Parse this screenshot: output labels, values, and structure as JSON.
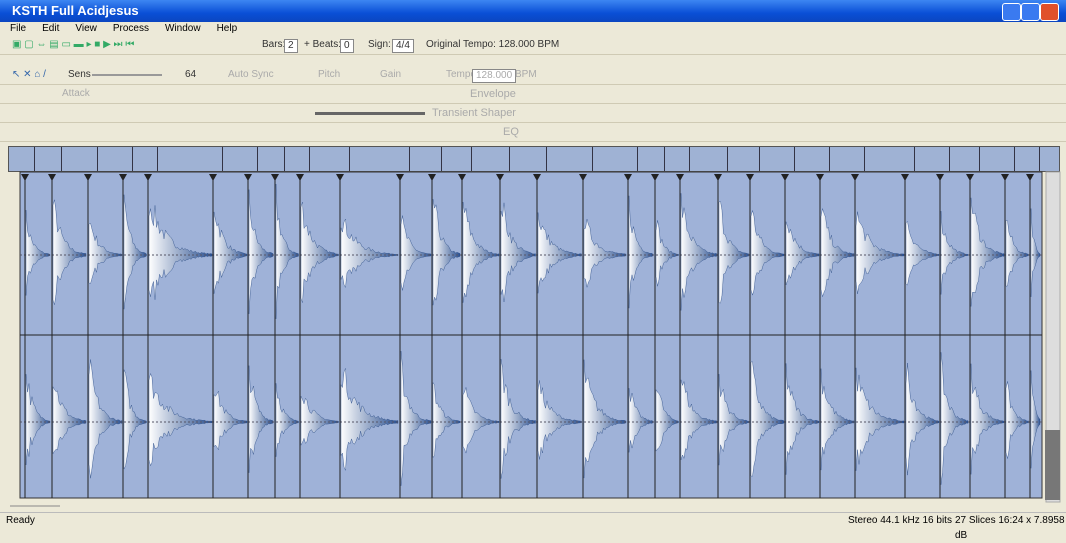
{
  "window": {
    "title": "KSTH Full Acidjesus"
  },
  "menu": [
    "File",
    "Edit",
    "View",
    "Process",
    "Window",
    "Help"
  ],
  "toolbar": {
    "bars_label": "Bars:",
    "bars": "2",
    "beats_label": "+ Beats:",
    "beats": "0",
    "sign_label": "Sign:",
    "sign": "4/4",
    "tempo": "Original Tempo: 128.000 BPM"
  },
  "slice_bar": {
    "sens_label": "Sens",
    "sens": "64",
    "auto_sync": "Auto Sync",
    "pitch": "Pitch",
    "gain": "Gain",
    "tempo_label": "Tempo",
    "tempo": "128.000",
    "bpm": "BPM"
  },
  "envelope": {
    "attack": "Attack",
    "title": "Envelope"
  },
  "transient": {
    "title": "Transient Shaper"
  },
  "eq": {
    "title": "EQ"
  },
  "status": {
    "state": "Ready",
    "format": "Stereo 44.1 kHz 16 bits",
    "info": "27 Slices 16:24 x 7.8958 dB"
  }
}
